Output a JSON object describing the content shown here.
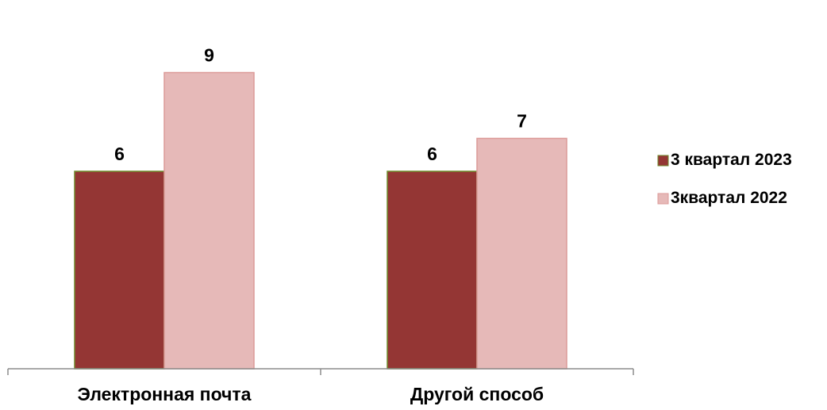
{
  "chart_data": {
    "type": "bar",
    "title": "",
    "xlabel": "",
    "ylabel": "",
    "categories": [
      "Электронная почта",
      "Другой способ"
    ],
    "series": [
      {
        "name": "3 квартал 2023",
        "values": [
          6,
          6
        ],
        "color": "#943634",
        "edge": "#6e8a2b"
      },
      {
        "name": "3квартал 2022",
        "values": [
          9,
          7
        ],
        "color": "#e6b9b8",
        "edge": "#dc9a98"
      }
    ],
    "ylim": [
      0,
      10
    ],
    "grid": false,
    "legend_position": "right"
  }
}
